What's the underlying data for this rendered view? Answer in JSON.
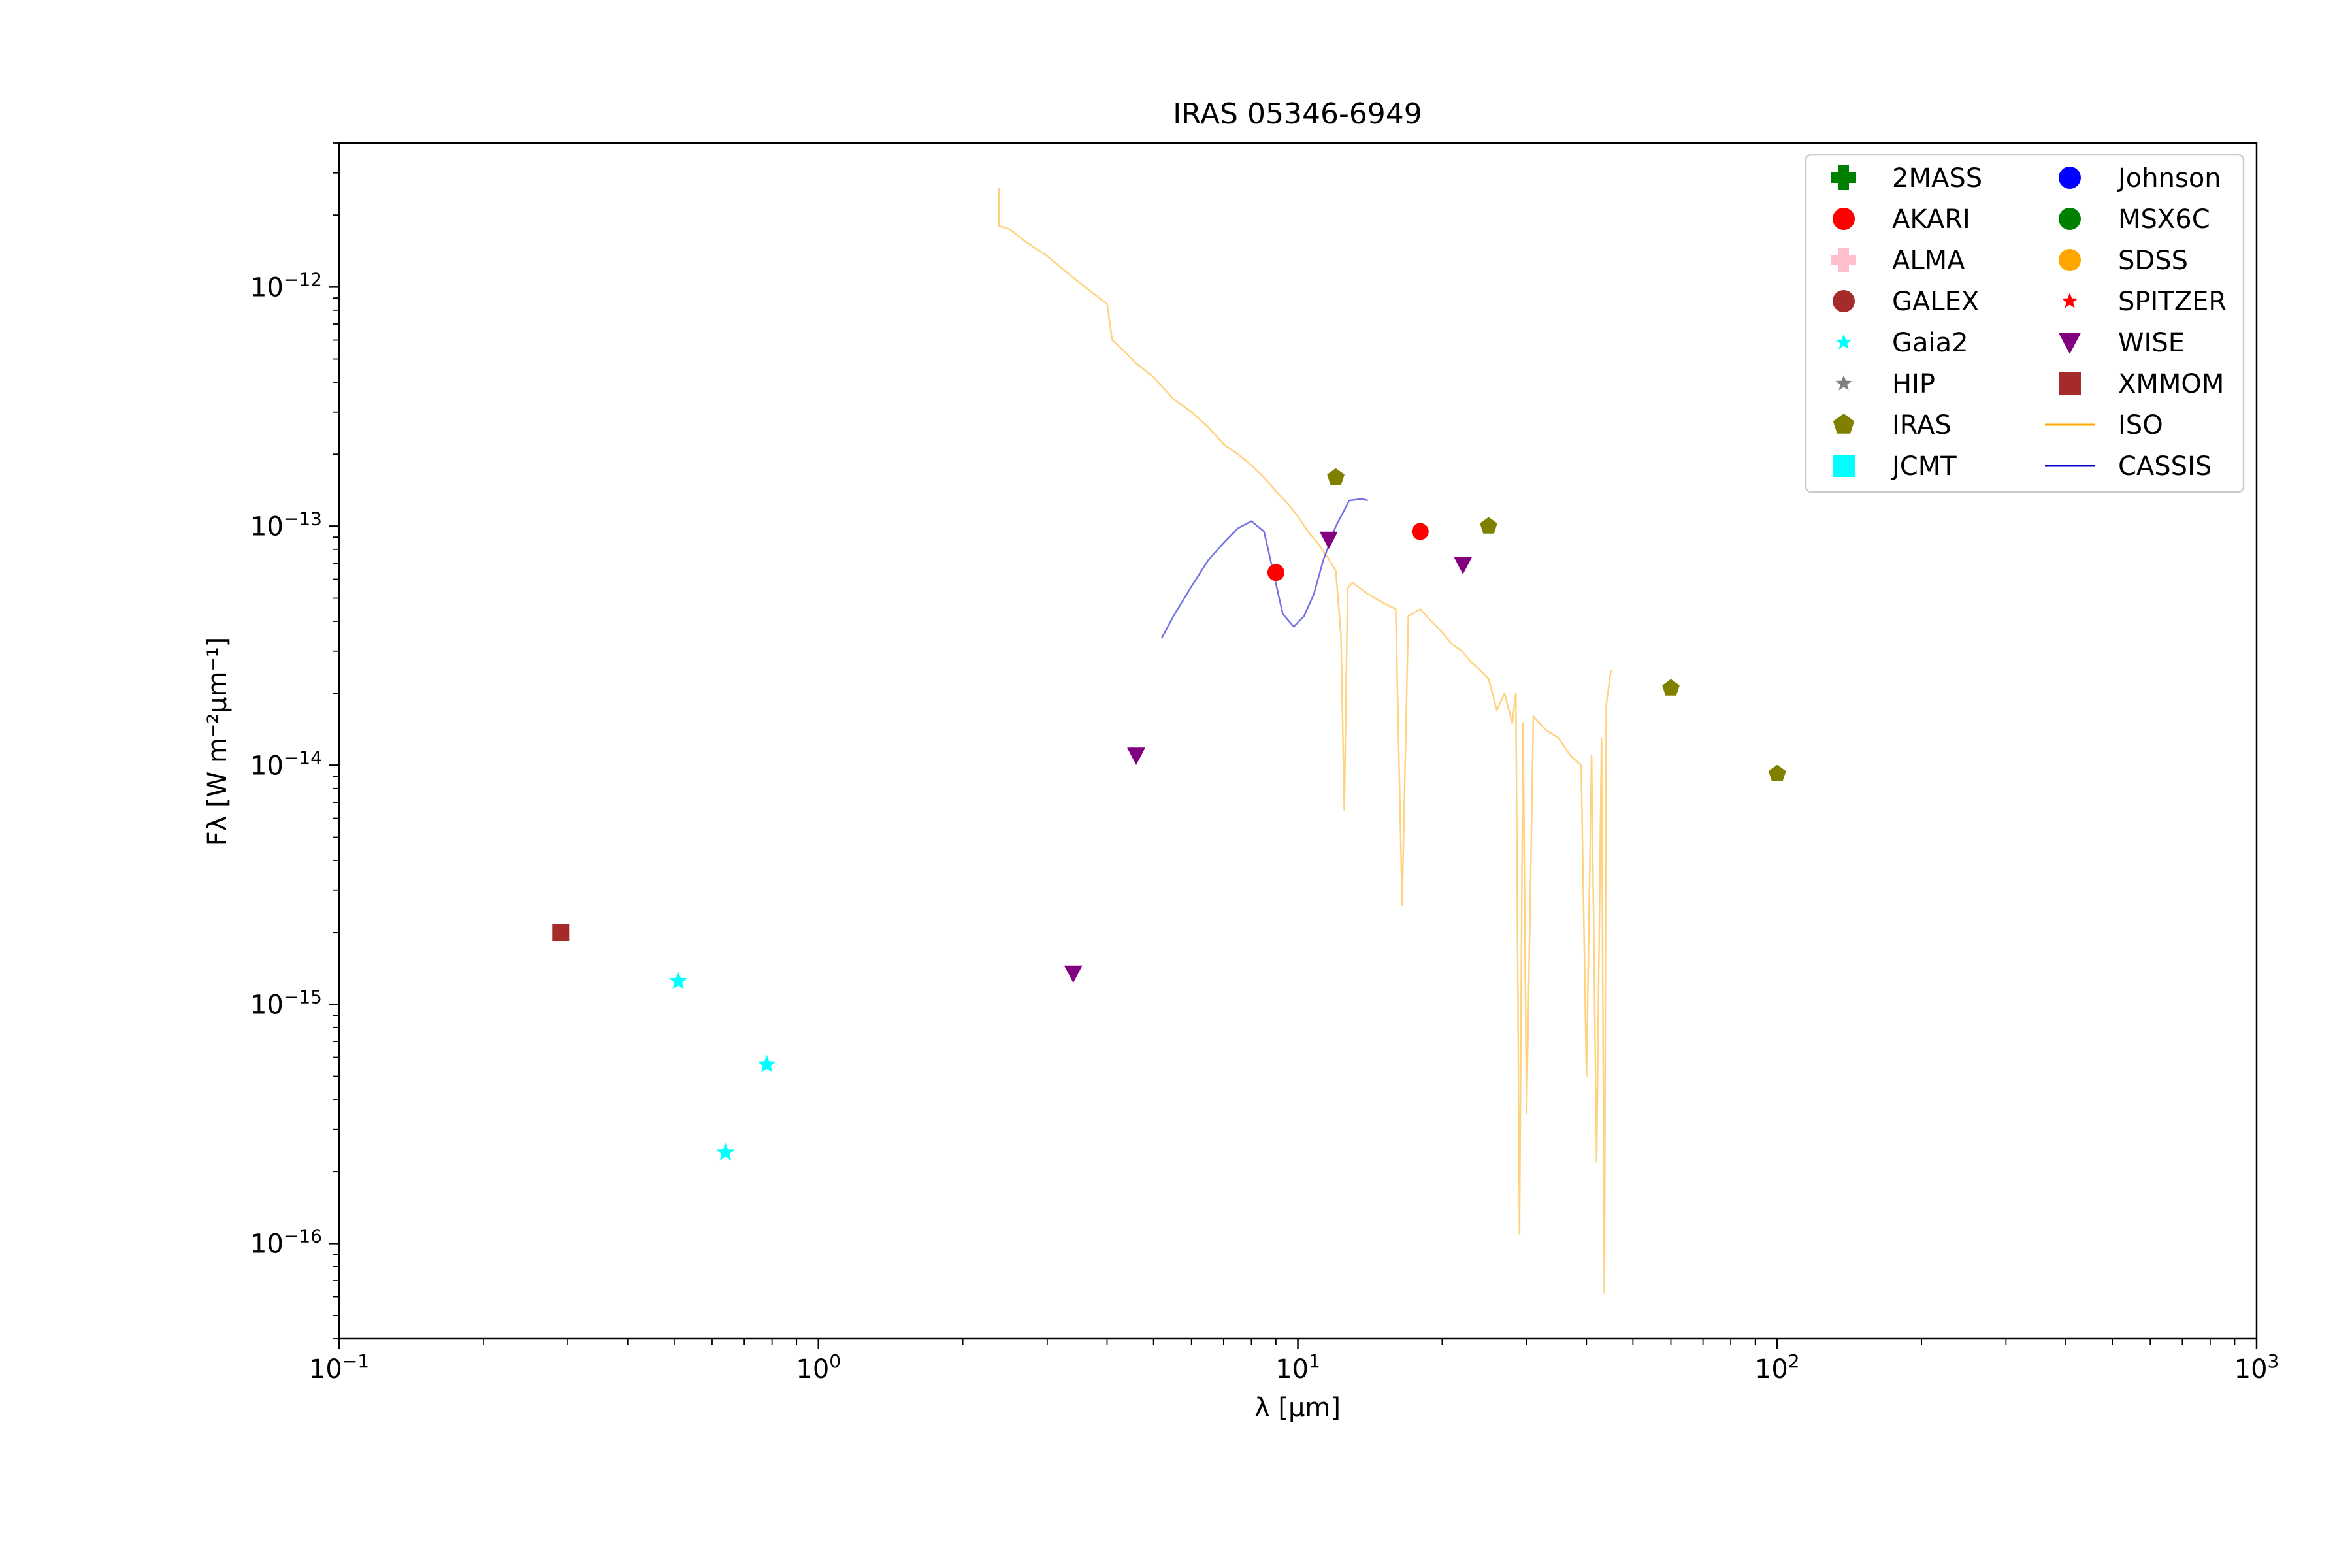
{
  "chart_data": {
    "type": "scatter",
    "title": "IRAS 05346-6949",
    "xlabel": "λ [μm]",
    "ylabel": "Fλ [W m⁻²μm⁻¹]",
    "xscale": "log",
    "yscale": "log",
    "xlim": [
      0.1,
      1000
    ],
    "ylim": [
      4e-17,
      4e-12
    ],
    "x_ticks": [
      {
        "value": 0.1,
        "base": "10",
        "exp": "−1"
      },
      {
        "value": 1,
        "base": "10",
        "exp": "0"
      },
      {
        "value": 10,
        "base": "10",
        "exp": "1"
      },
      {
        "value": 100,
        "base": "10",
        "exp": "2"
      },
      {
        "value": 1000,
        "base": "10",
        "exp": "3"
      }
    ],
    "y_ticks": [
      {
        "value": 1e-16,
        "base": "10",
        "exp": "−16"
      },
      {
        "value": 1e-15,
        "base": "10",
        "exp": "−15"
      },
      {
        "value": 1e-14,
        "base": "10",
        "exp": "−14"
      },
      {
        "value": 1e-13,
        "base": "10",
        "exp": "−13"
      },
      {
        "value": 1e-12,
        "base": "10",
        "exp": "−12"
      }
    ],
    "grid": false,
    "legend_position": "top-right",
    "legend": [
      {
        "name": "2MASS",
        "marker": "plus",
        "color": "#008000"
      },
      {
        "name": "AKARI",
        "marker": "circle",
        "color": "#ff0000"
      },
      {
        "name": "ALMA",
        "marker": "plus",
        "color": "#ffc0cb"
      },
      {
        "name": "GALEX",
        "marker": "circle",
        "color": "#a52a2a"
      },
      {
        "name": "Gaia2",
        "marker": "star",
        "color": "#00ffff"
      },
      {
        "name": "HIP",
        "marker": "star",
        "color": "#808080"
      },
      {
        "name": "IRAS",
        "marker": "pentagon",
        "color": "#808000"
      },
      {
        "name": "JCMT",
        "marker": "square",
        "color": "#00ffff"
      },
      {
        "name": "Johnson",
        "marker": "circle",
        "color": "#0000ff"
      },
      {
        "name": "MSX6C",
        "marker": "circle",
        "color": "#008000"
      },
      {
        "name": "SDSS",
        "marker": "circle",
        "color": "#ffa500"
      },
      {
        "name": "SPITZER",
        "marker": "star",
        "color": "#ff0000"
      },
      {
        "name": "WISE",
        "marker": "triangle-down",
        "color": "#800080"
      },
      {
        "name": "XMMOM",
        "marker": "square",
        "color": "#a52a2a"
      },
      {
        "name": "ISO",
        "marker": "line",
        "color": "#ffa500"
      },
      {
        "name": "CASSIS",
        "marker": "line",
        "color": "#0000cd"
      }
    ],
    "series": [
      {
        "name": "XMMOM",
        "marker": "square",
        "color": "#a52a2a",
        "points": [
          [
            0.29,
            2e-15
          ]
        ]
      },
      {
        "name": "Gaia2",
        "marker": "star",
        "color": "#00ffff",
        "points": [
          [
            0.51,
            1.25e-15
          ],
          [
            0.64,
            2.4e-16
          ],
          [
            0.78,
            5.6e-16
          ]
        ]
      },
      {
        "name": "WISE",
        "marker": "triangle-down",
        "color": "#800080",
        "points": [
          [
            3.4,
            1.35e-15
          ],
          [
            4.6,
            1.1e-14
          ],
          [
            11.6,
            8.8e-14
          ],
          [
            22.1,
            6.9e-14
          ]
        ]
      },
      {
        "name": "AKARI",
        "marker": "circle",
        "color": "#ff0000",
        "points": [
          [
            9.0,
            6.4e-14
          ],
          [
            18.0,
            9.5e-14
          ]
        ]
      },
      {
        "name": "IRAS",
        "marker": "pentagon",
        "color": "#808000",
        "points": [
          [
            12.0,
            1.6e-13
          ],
          [
            25.0,
            1e-13
          ],
          [
            60.0,
            2.1e-14
          ],
          [
            100.0,
            9.2e-15
          ]
        ]
      }
    ],
    "lines": [
      {
        "name": "ISO",
        "color": "#ffa500",
        "points": [
          [
            2.38,
            2.6e-12
          ],
          [
            2.38,
            1.8e-12
          ],
          [
            2.5,
            1.75e-12
          ],
          [
            2.7,
            1.55e-12
          ],
          [
            3.0,
            1.35e-12
          ],
          [
            3.3,
            1.15e-12
          ],
          [
            3.6,
            1e-12
          ],
          [
            4.0,
            8.5e-13
          ],
          [
            4.1,
            6e-13
          ],
          [
            4.3,
            5.5e-13
          ],
          [
            4.6,
            4.8e-13
          ],
          [
            5.0,
            4.2e-13
          ],
          [
            5.5,
            3.4e-13
          ],
          [
            6.0,
            3e-13
          ],
          [
            6.5,
            2.6e-13
          ],
          [
            7.0,
            2.2e-13
          ],
          [
            7.5,
            2e-13
          ],
          [
            8.0,
            1.8e-13
          ],
          [
            8.5,
            1.6e-13
          ],
          [
            9.0,
            1.4e-13
          ],
          [
            9.5,
            1.25e-13
          ],
          [
            10.0,
            1.1e-13
          ],
          [
            10.5,
            9.5e-14
          ],
          [
            11.0,
            8.5e-14
          ],
          [
            11.5,
            7.5e-14
          ],
          [
            12.0,
            6.5e-14
          ],
          [
            12.3,
            3.5e-14
          ],
          [
            12.5,
            6.5e-15
          ],
          [
            12.7,
            5.5e-14
          ],
          [
            13.0,
            5.8e-14
          ],
          [
            14.0,
            5.2e-14
          ],
          [
            15.0,
            4.8e-14
          ],
          [
            16.0,
            4.5e-14
          ],
          [
            16.5,
            2.6e-15
          ],
          [
            17.0,
            4.2e-14
          ],
          [
            18.0,
            4.5e-14
          ],
          [
            19.0,
            4e-14
          ],
          [
            20.0,
            3.6e-14
          ],
          [
            21.0,
            3.2e-14
          ],
          [
            22.0,
            3e-14
          ],
          [
            23.0,
            2.7e-14
          ],
          [
            24.0,
            2.5e-14
          ],
          [
            25.0,
            2.3e-14
          ],
          [
            26.0,
            1.7e-14
          ],
          [
            27.0,
            2e-14
          ],
          [
            28.0,
            1.5e-14
          ],
          [
            28.5,
            2e-14
          ],
          [
            29.0,
            1.1e-16
          ],
          [
            29.5,
            1.5e-14
          ],
          [
            30.0,
            3.5e-16
          ],
          [
            31.0,
            1.6e-14
          ],
          [
            33.0,
            1.4e-14
          ],
          [
            35.0,
            1.3e-14
          ],
          [
            37.0,
            1.1e-14
          ],
          [
            39.0,
            1e-14
          ],
          [
            40.0,
            5e-16
          ],
          [
            41.0,
            1.1e-14
          ],
          [
            42.0,
            2.2e-16
          ],
          [
            43.0,
            1.3e-14
          ],
          [
            43.6,
            6.2e-17
          ],
          [
            44.0,
            1.8e-14
          ],
          [
            45.0,
            2.5e-14
          ]
        ]
      },
      {
        "name": "CASSIS",
        "color": "#0000cd",
        "points": [
          [
            5.2,
            3.4e-14
          ],
          [
            5.5,
            4.2e-14
          ],
          [
            6.0,
            5.6e-14
          ],
          [
            6.5,
            7.2e-14
          ],
          [
            7.0,
            8.5e-14
          ],
          [
            7.5,
            9.8e-14
          ],
          [
            8.0,
            1.05e-13
          ],
          [
            8.5,
            9.5e-14
          ],
          [
            8.8,
            7e-14
          ],
          [
            9.3,
            4.3e-14
          ],
          [
            9.8,
            3.8e-14
          ],
          [
            10.3,
            4.2e-14
          ],
          [
            10.8,
            5.2e-14
          ],
          [
            11.3,
            7.2e-14
          ],
          [
            12.0,
            1e-13
          ],
          [
            12.8,
            1.28e-13
          ],
          [
            13.6,
            1.3e-13
          ],
          [
            14.0,
            1.28e-13
          ]
        ]
      }
    ]
  }
}
